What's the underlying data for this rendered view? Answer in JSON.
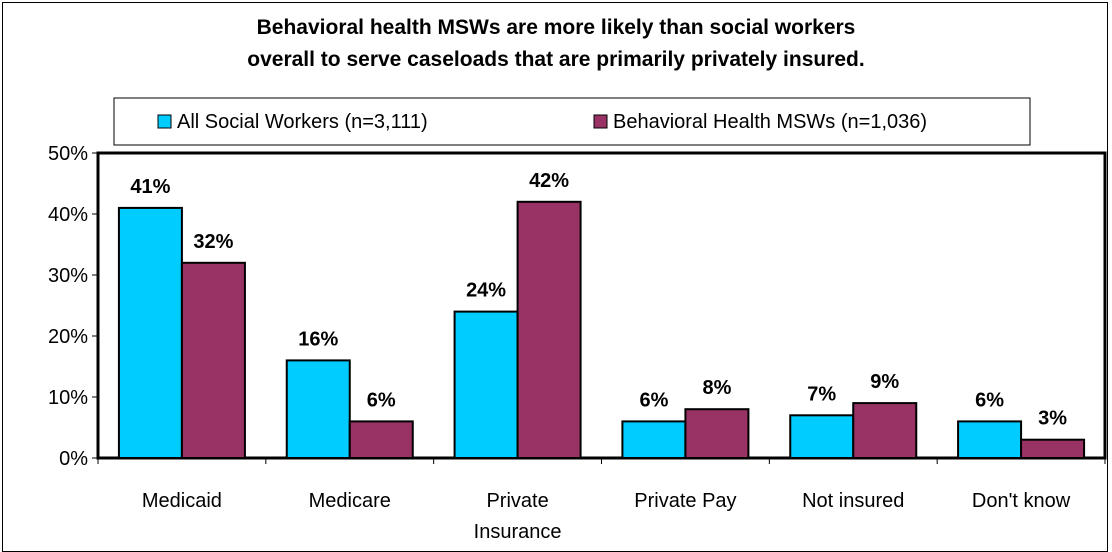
{
  "chart_data": {
    "type": "bar",
    "title_lines": [
      "Behavioral health MSWs are more likely than social workers",
      "overall to serve caseloads that are primarily privately insured."
    ],
    "categories": [
      [
        "Medicaid"
      ],
      [
        "Medicare"
      ],
      [
        "Private",
        "Insurance"
      ],
      [
        "Private Pay"
      ],
      [
        "Not insured"
      ],
      [
        "Don't know"
      ]
    ],
    "series": [
      {
        "name": "All Social Workers (n=3,111)",
        "color": "#00ccff",
        "values": [
          41,
          16,
          24,
          6,
          7,
          6
        ]
      },
      {
        "name": "Behavioral Health MSWs (n=1,036)",
        "color": "#993366",
        "values": [
          32,
          6,
          42,
          8,
          9,
          3
        ]
      }
    ],
    "ylim": [
      0,
      50
    ],
    "y_ticks": [
      0,
      10,
      20,
      30,
      40,
      50
    ],
    "value_suffix": "%",
    "legend_position": "top",
    "grid": false
  }
}
